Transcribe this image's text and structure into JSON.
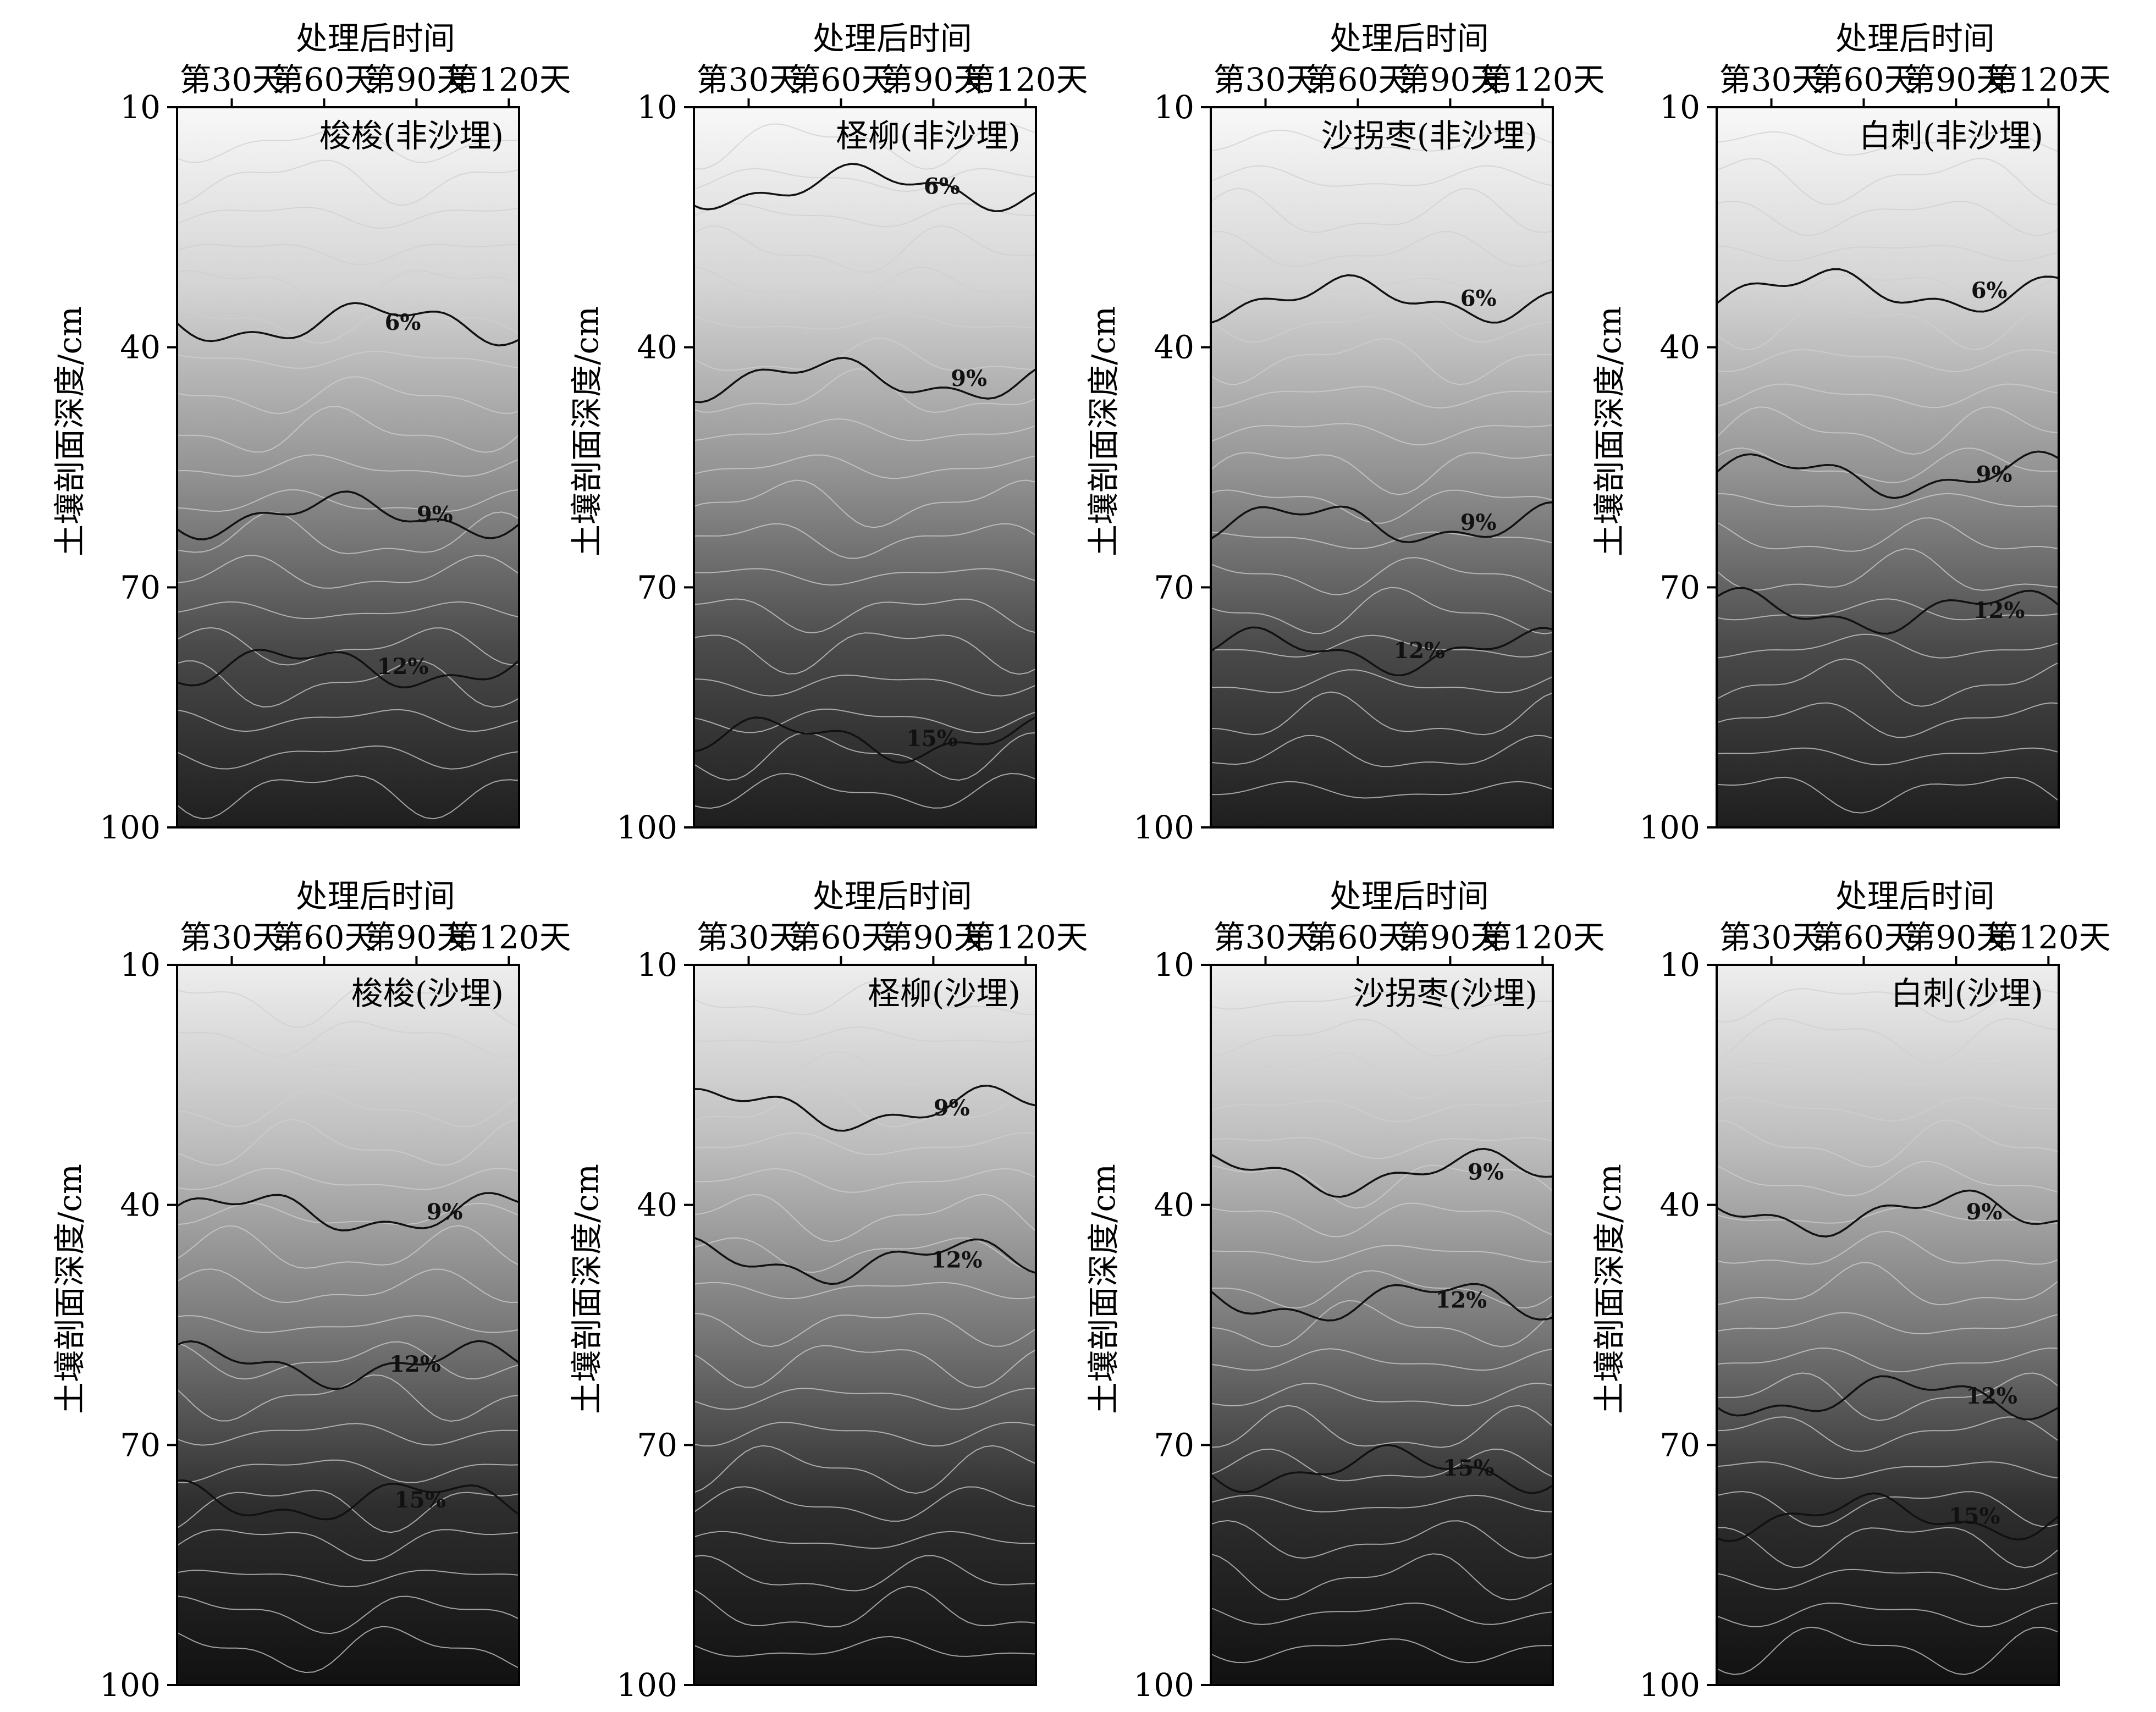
{
  "chart_data": [
    {
      "type": "heatmap",
      "title": "梭梭(非沙埋)",
      "xlabel": "处理后时间",
      "ylabel": "土壤剖面深度/cm",
      "x_ticks": [
        "第30天",
        "第60天",
        "第90天",
        "第120天"
      ],
      "y_ticks": [
        "10",
        "40",
        "70",
        "100"
      ],
      "ylim": [
        10,
        100
      ],
      "contour_labels": [
        {
          "text": "6%",
          "x": 75,
          "y": 37,
          "value": 6
        },
        {
          "text": "9%",
          "x": 88,
          "y": 61,
          "value": 9
        },
        {
          "text": "12%",
          "x": 75,
          "y": 80,
          "value": 12
        }
      ]
    },
    {
      "type": "heatmap",
      "title": "柽柳(非沙埋)",
      "xlabel": "处理后时间",
      "ylabel": "土壤剖面深度/cm",
      "x_ticks": [
        "第30天",
        "第60天",
        "第90天",
        "第120天"
      ],
      "y_ticks": [
        "10",
        "40",
        "70",
        "100"
      ],
      "ylim": [
        10,
        100
      ],
      "contour_labels": [
        {
          "text": "6%",
          "x": 84,
          "y": 20,
          "value": 6
        },
        {
          "text": "9%",
          "x": 95,
          "y": 44,
          "value": 9
        },
        {
          "text": "15%",
          "x": 80,
          "y": 89,
          "value": 15
        }
      ]
    },
    {
      "type": "heatmap",
      "title": "沙拐枣(非沙埋)",
      "xlabel": "处理后时间",
      "ylabel": "土壤剖面深度/cm",
      "x_ticks": [
        "第30天",
        "第60天",
        "第90天",
        "第120天"
      ],
      "y_ticks": [
        "10",
        "40",
        "70",
        "100"
      ],
      "ylim": [
        10,
        100
      ],
      "contour_labels": [
        {
          "text": "6%",
          "x": 92,
          "y": 34,
          "value": 6
        },
        {
          "text": "9%",
          "x": 92,
          "y": 62,
          "value": 9
        },
        {
          "text": "12%",
          "x": 68,
          "y": 78,
          "value": 12
        }
      ]
    },
    {
      "type": "heatmap",
      "title": "白刺(非沙埋)",
      "xlabel": "处理后时间",
      "ylabel": "土壤剖面深度/cm",
      "x_ticks": [
        "第30天",
        "第60天",
        "第90天",
        "第120天"
      ],
      "y_ticks": [
        "10",
        "40",
        "70",
        "100"
      ],
      "ylim": [
        10,
        100
      ],
      "contour_labels": [
        {
          "text": "6%",
          "x": 94,
          "y": 33,
          "value": 6
        },
        {
          "text": "9%",
          "x": 96,
          "y": 56,
          "value": 9
        },
        {
          "text": "12%",
          "x": 98,
          "y": 73,
          "value": 12
        }
      ]
    },
    {
      "type": "heatmap",
      "title": "梭梭(沙埋)",
      "xlabel": "处理后时间",
      "ylabel": "土壤剖面深度/cm",
      "x_ticks": [
        "第30天",
        "第60天",
        "第90天",
        "第120天"
      ],
      "y_ticks": [
        "10",
        "40",
        "70",
        "100"
      ],
      "ylim": [
        10,
        100
      ],
      "contour_labels": [
        {
          "text": "9%",
          "x": 92,
          "y": 41,
          "value": 9
        },
        {
          "text": "12%",
          "x": 80,
          "y": 60,
          "value": 12
        },
        {
          "text": "15%",
          "x": 82,
          "y": 77,
          "value": 15
        }
      ]
    },
    {
      "type": "heatmap",
      "title": "柽柳(沙埋)",
      "xlabel": "处理后时间",
      "ylabel": "土壤剖面深度/cm",
      "x_ticks": [
        "第30天",
        "第60天",
        "第90天",
        "第120天"
      ],
      "y_ticks": [
        "10",
        "40",
        "70",
        "100"
      ],
      "ylim": [
        10,
        100
      ],
      "contour_labels": [
        {
          "text": "9%",
          "x": 88,
          "y": 28,
          "value": 9
        },
        {
          "text": "12%",
          "x": 90,
          "y": 47,
          "value": 12
        }
      ]
    },
    {
      "type": "heatmap",
      "title": "沙拐枣(沙埋)",
      "xlabel": "处理后时间",
      "ylabel": "土壤剖面深度/cm",
      "x_ticks": [
        "第30天",
        "第60天",
        "第90天",
        "第120天"
      ],
      "y_ticks": [
        "10",
        "40",
        "70",
        "100"
      ],
      "ylim": [
        10,
        100
      ],
      "contour_labels": [
        {
          "text": "9%",
          "x": 95,
          "y": 36,
          "value": 9
        },
        {
          "text": "12%",
          "x": 85,
          "y": 52,
          "value": 12
        },
        {
          "text": "15%",
          "x": 88,
          "y": 73,
          "value": 15
        }
      ]
    },
    {
      "type": "heatmap",
      "title": "白刺(沙埋)",
      "xlabel": "处理后时间",
      "ylabel": "土壤剖面深度/cm",
      "x_ticks": [
        "第30天",
        "第60天",
        "第90天",
        "第120天"
      ],
      "y_ticks": [
        "10",
        "40",
        "70",
        "100"
      ],
      "ylim": [
        10,
        100
      ],
      "contour_labels": [
        {
          "text": "9%",
          "x": 92,
          "y": 41,
          "value": 9
        },
        {
          "text": "12%",
          "x": 95,
          "y": 64,
          "value": 12
        },
        {
          "text": "15%",
          "x": 88,
          "y": 79,
          "value": 15
        }
      ]
    }
  ]
}
